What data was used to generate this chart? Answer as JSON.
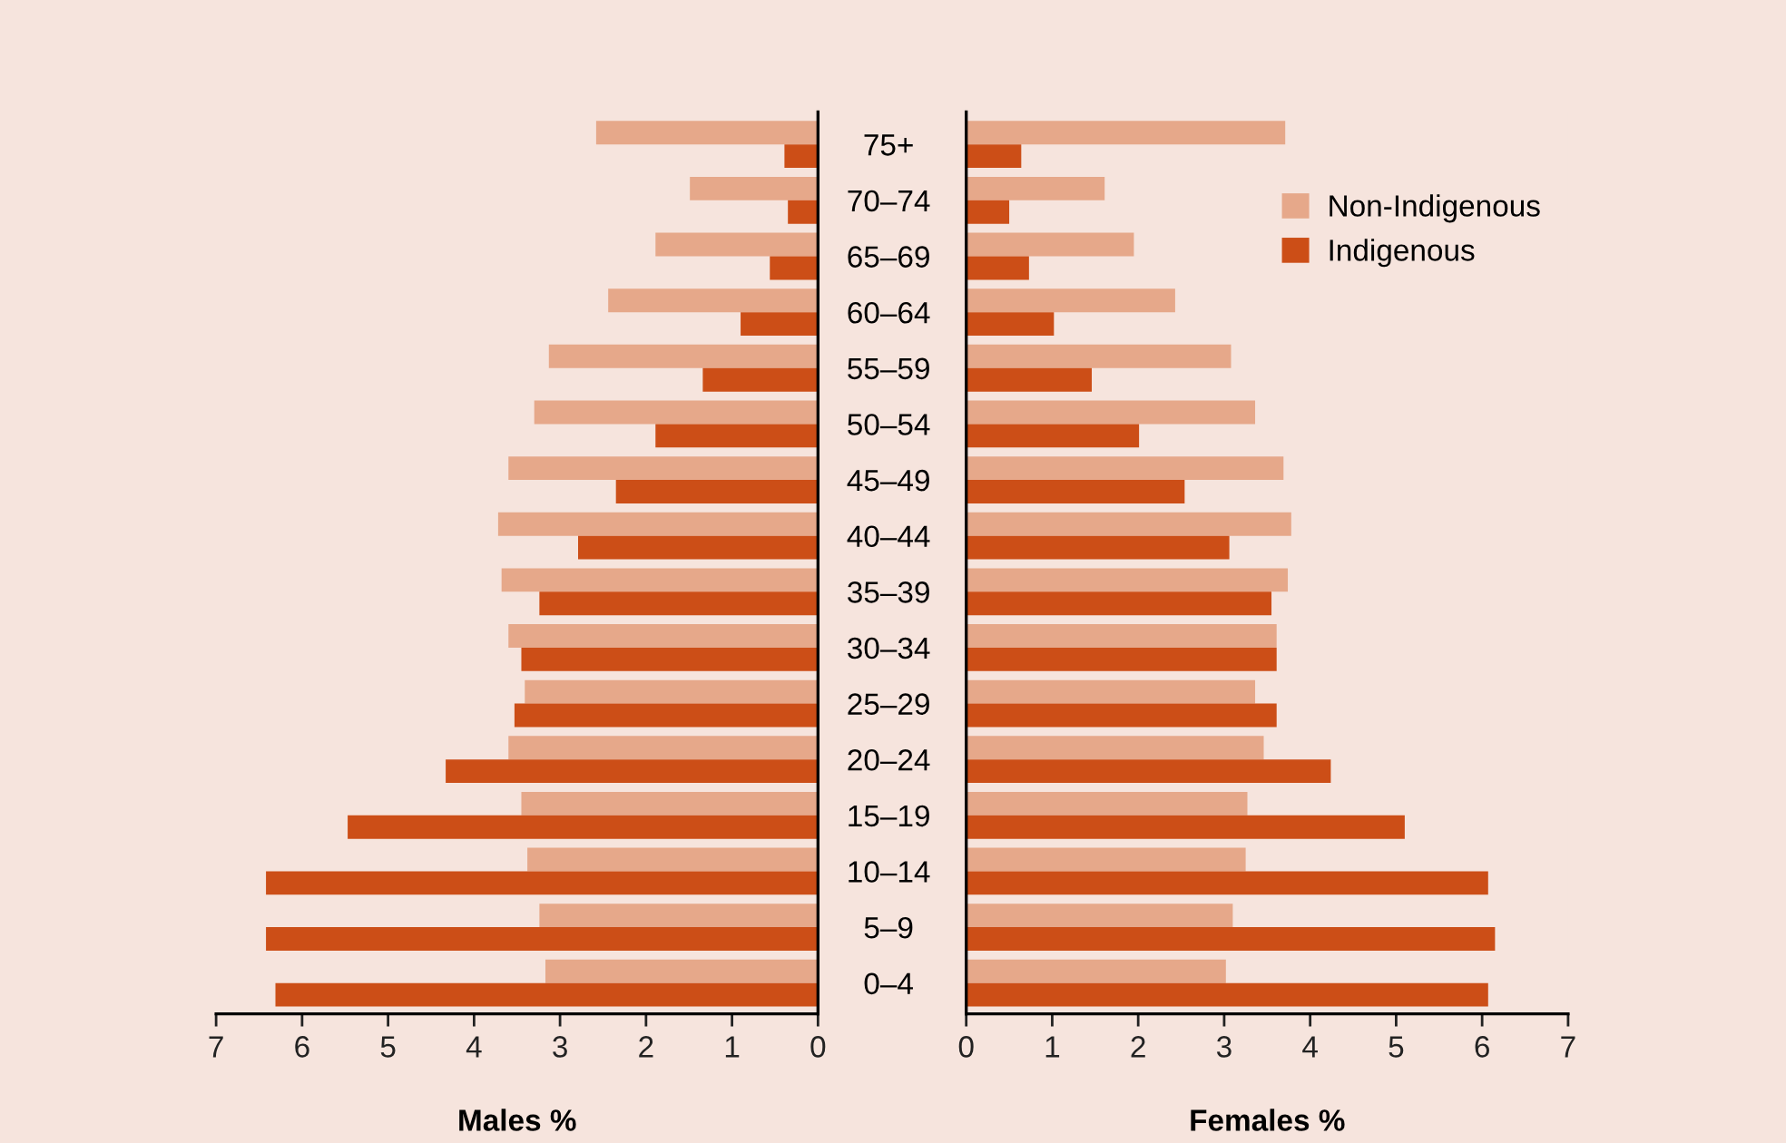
{
  "chart_data": [
    {
      "type": "bar",
      "orientation": "horizontal",
      "xlabel": "Males %",
      "categories": [
        "75+",
        "70–74",
        "65–69",
        "60–64",
        "55–59",
        "50–54",
        "45–49",
        "40–44",
        "35–39",
        "30–34",
        "25–29",
        "20–24",
        "15–19",
        "10–14",
        "5–9",
        "0–4"
      ],
      "series": [
        {
          "color": "#e6a88a",
          "values": [
            2.58,
            1.49,
            1.89,
            2.44,
            3.13,
            3.3,
            3.6,
            3.72,
            3.68,
            3.6,
            3.41,
            3.6,
            3.45,
            3.38,
            3.24,
            3.17
          ]
        },
        {
          "color": "#cc4e17",
          "values": [
            0.39,
            0.35,
            0.56,
            0.9,
            1.34,
            1.89,
            2.35,
            2.79,
            3.24,
            3.45,
            3.53,
            4.33,
            5.47,
            6.42,
            6.42,
            6.31
          ]
        }
      ],
      "xlim": [
        7,
        0
      ],
      "xticks": [
        7,
        6,
        5,
        4,
        3,
        2,
        1,
        0
      ]
    },
    {
      "type": "bar",
      "orientation": "horizontal",
      "xlabel": "Females %",
      "categories": [
        null,
        null,
        null,
        null,
        null,
        null,
        null,
        null,
        null,
        null,
        null,
        null,
        null,
        null,
        null,
        null
      ],
      "series": [
        {
          "name": "Non-Indigenous",
          "color": "#e6a88a",
          "values": [
            3.71,
            1.61,
            1.95,
            2.43,
            3.08,
            3.36,
            3.69,
            3.78,
            3.74,
            3.61,
            3.36,
            3.46,
            3.27,
            3.25,
            3.1,
            3.02
          ]
        },
        {
          "name": "Indigenous",
          "color": "#cc4e17",
          "values": [
            0.64,
            0.5,
            0.73,
            1.02,
            1.46,
            2.01,
            2.54,
            3.06,
            3.55,
            3.61,
            3.61,
            4.24,
            5.1,
            6.07,
            6.15,
            6.07
          ]
        }
      ],
      "xlim": [
        0,
        7
      ],
      "xticks": [
        0,
        1,
        2,
        3,
        4,
        5,
        6,
        7
      ],
      "tick_labels": "x",
      "legend": "top right"
    }
  ]
}
